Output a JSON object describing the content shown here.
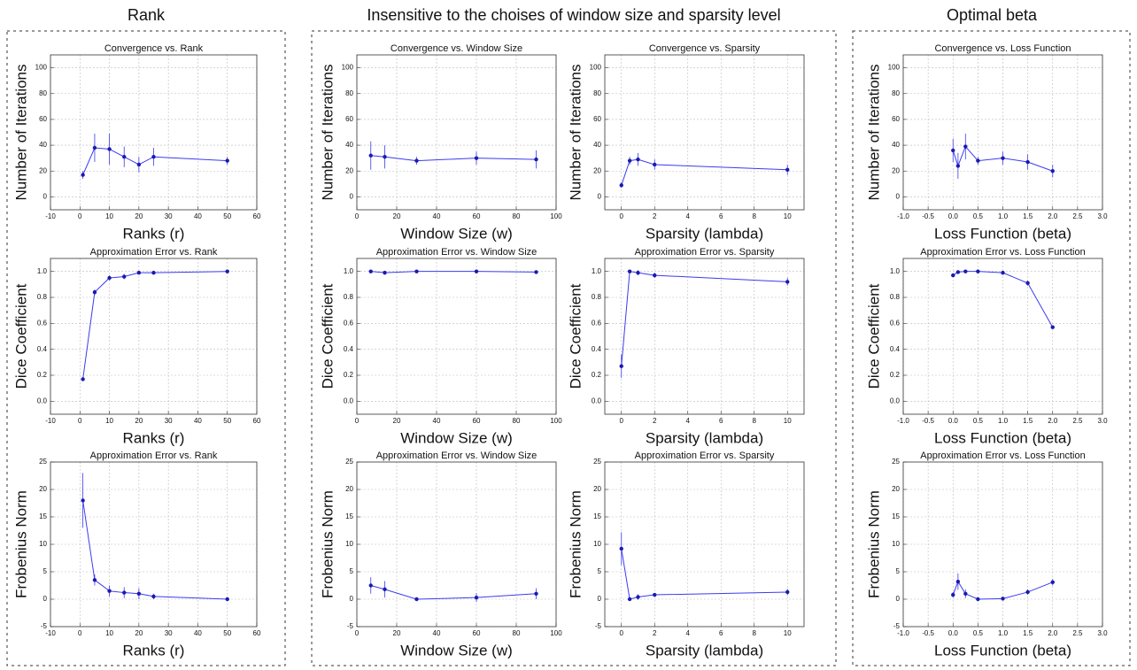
{
  "headings": [
    "Rank",
    "Insensitive to the choises of window size and sparsity level",
    "Optimal beta"
  ],
  "chart_data": [
    {
      "type": "line",
      "title": "Convergence vs. Rank",
      "xlabel": "Ranks (r)",
      "ylabel": "Number of Iterations",
      "grid": true,
      "x": [
        1,
        5,
        10,
        15,
        20,
        25,
        50
      ],
      "xlim": [
        -10,
        60
      ],
      "xticks": [
        -10,
        0,
        10,
        20,
        30,
        40,
        50,
        60
      ],
      "ylim": [
        -10,
        110
      ],
      "yticks": [
        0,
        20,
        40,
        60,
        80,
        100
      ],
      "series": [
        {
          "color": "#3b3bf0",
          "values": [
            17,
            38,
            37,
            31,
            25,
            31,
            28
          ],
          "errors": [
            3,
            11,
            12,
            8,
            6,
            7,
            3
          ]
        }
      ]
    },
    {
      "type": "line",
      "title": "Approximation Error vs. Rank",
      "xlabel": "Ranks (r)",
      "ylabel": "Dice Coefficient",
      "grid": true,
      "x": [
        1,
        5,
        10,
        15,
        20,
        25,
        50
      ],
      "xlim": [
        -10,
        60
      ],
      "xticks": [
        -10,
        0,
        10,
        20,
        30,
        40,
        50,
        60
      ],
      "ylim": [
        -0.1,
        1.1
      ],
      "yticks": [
        {
          "value": 0,
          "label": "0.0"
        },
        0.2,
        0.4,
        0.6,
        0.8,
        {
          "value": 1,
          "label": "1.0"
        }
      ],
      "series": [
        {
          "color": "#3b3bf0",
          "values": [
            0.17,
            0.84,
            0.95,
            0.96,
            0.99,
            0.99,
            1.0
          ],
          "errors": [
            0.01,
            0.02,
            0.02,
            0.02,
            0.01,
            0.01,
            0.01
          ]
        }
      ]
    },
    {
      "type": "line",
      "title": "Approximation Error vs. Rank",
      "xlabel": "Ranks (r)",
      "ylabel": "Frobenius Norm",
      "grid": true,
      "x": [
        1,
        5,
        10,
        15,
        20,
        25,
        50
      ],
      "xlim": [
        -10,
        60
      ],
      "xticks": [
        -10,
        0,
        10,
        20,
        30,
        40,
        50,
        60
      ],
      "ylim": [
        -5,
        25
      ],
      "yticks": [
        -5,
        0,
        5,
        10,
        15,
        20,
        25
      ],
      "series": [
        {
          "color": "#3b3bf0",
          "values": [
            18,
            3.5,
            1.5,
            1.2,
            1,
            0.5,
            0
          ],
          "errors": [
            5,
            1,
            1,
            1,
            1,
            0.5,
            0.1
          ]
        }
      ]
    },
    {
      "type": "line",
      "title": "Convergence vs. Window Size",
      "xlabel": "Window Size (w)",
      "ylabel": "Number of Iterations",
      "grid": true,
      "x": [
        7,
        14,
        30,
        60,
        90
      ],
      "xlim": [
        0,
        100
      ],
      "xticks": [
        0,
        20,
        40,
        60,
        80,
        100
      ],
      "ylim": [
        -10,
        110
      ],
      "yticks": [
        0,
        20,
        40,
        60,
        80,
        100
      ],
      "series": [
        {
          "color": "#3b3bf0",
          "values": [
            32,
            31,
            28,
            30,
            29
          ],
          "errors": [
            11,
            9,
            3,
            5,
            7
          ]
        }
      ]
    },
    {
      "type": "line",
      "title": "Approximation Error vs. Window Size",
      "xlabel": "Window Size (w)",
      "ylabel": "Dice Coefficient",
      "grid": true,
      "x": [
        7,
        14,
        30,
        60,
        90
      ],
      "xlim": [
        0,
        100
      ],
      "xticks": [
        0,
        20,
        40,
        60,
        80,
        100
      ],
      "ylim": [
        -0.1,
        1.1
      ],
      "yticks": [
        {
          "value": 0,
          "label": "0.0"
        },
        0.2,
        0.4,
        0.6,
        0.8,
        {
          "value": 1,
          "label": "1.0"
        }
      ],
      "series": [
        {
          "color": "#3b3bf0",
          "values": [
            1.0,
            0.99,
            1.0,
            1.0,
            0.995
          ],
          "errors": [
            0.005,
            0.005,
            0.005,
            0.005,
            0.005
          ]
        }
      ]
    },
    {
      "type": "line",
      "title": "Approximation Error vs. Window Size",
      "xlabel": "Window Size (w)",
      "ylabel": "Frobenius Norm",
      "grid": true,
      "x": [
        7,
        14,
        30,
        60,
        90
      ],
      "xlim": [
        0,
        100
      ],
      "xticks": [
        0,
        20,
        40,
        60,
        80,
        100
      ],
      "ylim": [
        -5,
        25
      ],
      "yticks": [
        -5,
        0,
        5,
        10,
        15,
        20,
        25
      ],
      "series": [
        {
          "color": "#3b3bf0",
          "values": [
            2.5,
            1.8,
            0,
            0.3,
            1.0
          ],
          "errors": [
            1.5,
            1.5,
            0.1,
            0.8,
            1
          ]
        }
      ]
    },
    {
      "type": "line",
      "title": "Convergence vs. Sparsity",
      "xlabel": "Sparsity (lambda)",
      "ylabel": "Number of Iterations",
      "grid": true,
      "x": [
        0,
        0.5,
        1,
        2,
        10
      ],
      "xlim": [
        -1,
        11
      ],
      "xticks": [
        0,
        2,
        4,
        6,
        8,
        10
      ],
      "ylim": [
        -10,
        110
      ],
      "yticks": [
        0,
        20,
        40,
        60,
        80,
        100
      ],
      "series": [
        {
          "color": "#3b3bf0",
          "values": [
            9,
            28,
            29,
            25,
            21
          ],
          "errors": [
            2,
            3,
            5,
            4,
            4
          ]
        }
      ]
    },
    {
      "type": "line",
      "title": "Approximation Error vs. Sparsity",
      "xlabel": "Sparsity (lambda)",
      "ylabel": "Dice Coefficient",
      "grid": true,
      "x": [
        0,
        0.5,
        1,
        2,
        10
      ],
      "xlim": [
        -1,
        11
      ],
      "xticks": [
        0,
        2,
        4,
        6,
        8,
        10
      ],
      "ylim": [
        -0.1,
        1.1
      ],
      "yticks": [
        {
          "value": 0,
          "label": "0.0"
        },
        0.2,
        0.4,
        0.6,
        0.8,
        {
          "value": 1,
          "label": "1.0"
        }
      ],
      "series": [
        {
          "color": "#3b3bf0",
          "values": [
            0.27,
            1.0,
            0.99,
            0.97,
            0.92
          ],
          "errors": [
            0.09,
            0.01,
            0.02,
            0.02,
            0.03
          ]
        }
      ]
    },
    {
      "type": "line",
      "title": "Approximation Error vs. Sparsity",
      "xlabel": "Sparsity (lambda)",
      "ylabel": "Frobenius Norm",
      "grid": true,
      "x": [
        0,
        0.5,
        1,
        2,
        10
      ],
      "xlim": [
        -1,
        11
      ],
      "xticks": [
        0,
        2,
        4,
        6,
        8,
        10
      ],
      "ylim": [
        -5,
        25
      ],
      "yticks": [
        -5,
        0,
        5,
        10,
        15,
        20,
        25
      ],
      "series": [
        {
          "color": "#3b3bf0",
          "values": [
            9.2,
            0,
            0.4,
            0.8,
            1.3
          ],
          "errors": [
            3,
            0.1,
            0.5,
            0.3,
            0.6
          ]
        }
      ]
    },
    {
      "type": "line",
      "title": "Convergence vs. Loss Function",
      "xlabel": "Loss Function (beta)",
      "ylabel": "Number of Iterations",
      "grid": true,
      "x": [
        0,
        0.1,
        0.25,
        0.5,
        1,
        1.5,
        2
      ],
      "xlim": [
        -1,
        3
      ],
      "xticks": [
        {
          "value": -1,
          "label": "-1.0"
        },
        -0.5,
        {
          "value": 0,
          "label": "0.0"
        },
        0.5,
        {
          "value": 1,
          "label": "1.0"
        },
        1.5,
        {
          "value": 2,
          "label": "2.0"
        },
        2.5,
        {
          "value": 3,
          "label": "3.0"
        }
      ],
      "ylim": [
        -10,
        110
      ],
      "yticks": [
        0,
        20,
        40,
        60,
        80,
        100
      ],
      "series": [
        {
          "color": "#3b3bf0",
          "values": [
            36,
            24,
            39,
            28,
            30,
            27,
            20
          ],
          "errors": [
            9,
            10,
            10,
            3,
            5,
            6,
            5
          ]
        }
      ]
    },
    {
      "type": "line",
      "title": "Approximation Error vs. Loss Function",
      "xlabel": "Loss Function (beta)",
      "ylabel": "Dice Coefficient",
      "grid": true,
      "x": [
        0,
        0.1,
        0.25,
        0.5,
        1,
        1.5,
        2
      ],
      "xlim": [
        -1,
        3
      ],
      "xticks": [
        {
          "value": -1,
          "label": "-1.0"
        },
        -0.5,
        {
          "value": 0,
          "label": "0.0"
        },
        0.5,
        {
          "value": 1,
          "label": "1.0"
        },
        1.5,
        {
          "value": 2,
          "label": "2.0"
        },
        2.5,
        {
          "value": 3,
          "label": "3.0"
        }
      ],
      "ylim": [
        -0.1,
        1.1
      ],
      "yticks": [
        {
          "value": 0,
          "label": "0.0"
        },
        0.2,
        0.4,
        0.6,
        0.8,
        {
          "value": 1,
          "label": "1.0"
        }
      ],
      "series": [
        {
          "color": "#3b3bf0",
          "values": [
            0.97,
            0.995,
            1.0,
            1.0,
            0.99,
            0.91,
            0.57
          ],
          "errors": [
            0.01,
            0.005,
            0.005,
            0.005,
            0.005,
            0.02,
            0.01
          ]
        }
      ]
    },
    {
      "type": "line",
      "title": "Approximation Error vs. Loss Function",
      "xlabel": "Loss Function (beta)",
      "ylabel": "Frobenius Norm",
      "grid": true,
      "x": [
        0,
        0.1,
        0.25,
        0.5,
        1,
        1.5,
        2
      ],
      "xlim": [
        -1,
        3
      ],
      "xticks": [
        {
          "value": -1,
          "label": "-1.0"
        },
        -0.5,
        {
          "value": 0,
          "label": "0.0"
        },
        0.5,
        {
          "value": 1,
          "label": "1.0"
        },
        1.5,
        {
          "value": 2,
          "label": "2.0"
        },
        2.5,
        {
          "value": 3,
          "label": "3.0"
        }
      ],
      "ylim": [
        -5,
        25
      ],
      "yticks": [
        -5,
        0,
        5,
        10,
        15,
        20,
        25
      ],
      "series": [
        {
          "color": "#3b3bf0",
          "values": [
            0.8,
            3.2,
            1,
            0,
            0.1,
            1.3,
            3.1
          ],
          "errors": [
            0.5,
            1.5,
            0.8,
            0.1,
            0.1,
            0.5,
            0.6
          ]
        }
      ]
    }
  ]
}
